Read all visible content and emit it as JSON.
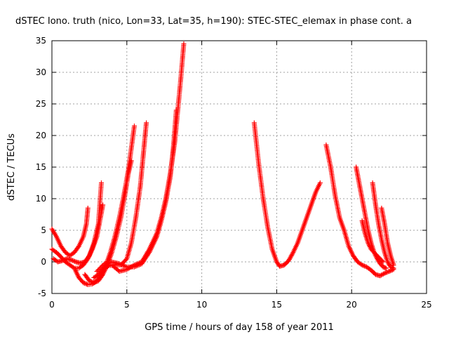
{
  "chart_data": {
    "type": "scatter",
    "title": "dSTEC Iono. truth (nico, Lon=33, Lat=35, h=190): STEC-STEC_elemax in phase cont. a",
    "xlabel": "GPS time / hours of day 158 of year 2011",
    "ylabel": "dSTEC  / TECUs",
    "xlim": [
      0,
      25
    ],
    "ylim": [
      -5,
      35
    ],
    "xticks": [
      "0",
      "5",
      "10",
      "15",
      "20",
      "25"
    ],
    "yticks": [
      "-5",
      "0",
      "5",
      "10",
      "15",
      "20",
      "25",
      "30",
      "35"
    ],
    "grid": true,
    "marker": "+",
    "color": "#ff0000",
    "series": [
      {
        "x": [
          0.0,
          0.3,
          0.6,
          0.9,
          1.2,
          1.5,
          1.8,
          2.1,
          2.3,
          2.4
        ],
        "y": [
          5.2,
          4.0,
          2.5,
          1.5,
          1.0,
          1.5,
          2.5,
          4.0,
          6.0,
          8.5
        ]
      },
      {
        "x": [
          0.1,
          0.4,
          0.7,
          1.0,
          1.3,
          1.6,
          1.9,
          2.2,
          2.5,
          2.8,
          3.1,
          3.3
        ],
        "y": [
          0.5,
          0.0,
          0.2,
          0.5,
          0.3,
          0.0,
          -0.2,
          0.0,
          1.0,
          3.0,
          6.0,
          12.5
        ]
      },
      {
        "x": [
          0.0,
          0.3,
          0.6,
          0.9,
          1.2,
          1.5,
          1.8,
          2.1,
          2.4,
          2.7,
          3.0,
          3.2,
          3.4
        ],
        "y": [
          2.0,
          1.5,
          0.8,
          0.0,
          -0.5,
          -1.0,
          -1.0,
          -0.5,
          0.5,
          2.0,
          4.0,
          6.5,
          9.0
        ]
      },
      {
        "x": [
          1.5,
          1.8,
          2.1,
          2.4,
          2.7,
          3.0,
          3.3,
          3.6,
          3.9,
          4.2,
          4.5,
          4.8,
          5.1,
          5.3,
          5.5
        ],
        "y": [
          -1.0,
          -2.5,
          -3.3,
          -3.6,
          -3.5,
          -3.0,
          -2.0,
          -0.5,
          1.5,
          4.0,
          7.0,
          10.5,
          14.5,
          18.0,
          21.5
        ]
      },
      {
        "x": [
          2.2,
          2.5,
          2.8,
          3.1,
          3.4,
          3.7,
          4.0,
          4.3,
          4.6,
          4.9,
          5.1,
          5.3
        ],
        "y": [
          -2.0,
          -3.0,
          -3.3,
          -3.0,
          -2.0,
          -0.5,
          1.5,
          4.0,
          7.0,
          11.0,
          14.0,
          16.0
        ]
      },
      {
        "x": [
          2.8,
          3.1,
          3.4,
          3.8,
          4.2,
          4.6,
          5.0,
          5.3,
          5.6,
          5.9,
          6.1,
          6.3
        ],
        "y": [
          -2.5,
          -2.0,
          -1.2,
          -0.6,
          -0.5,
          -0.5,
          0.5,
          3.0,
          7.0,
          12.0,
          17.0,
          22.0
        ]
      },
      {
        "x": [
          3.0,
          3.5,
          4.0,
          4.5,
          5.0,
          5.5,
          6.0,
          6.5,
          7.0,
          7.3,
          7.6,
          7.9,
          8.1,
          8.3
        ],
        "y": [
          -1.5,
          -0.3,
          0.0,
          -0.3,
          -0.8,
          -0.8,
          -0.3,
          1.5,
          4.0,
          6.5,
          9.5,
          13.5,
          18.0,
          24.0
        ]
      },
      {
        "x": [
          4.0,
          4.5,
          5.0,
          5.5,
          6.0,
          6.5,
          7.0,
          7.3,
          7.6,
          7.9,
          8.2,
          8.4,
          8.6,
          8.8
        ],
        "y": [
          -0.5,
          -1.5,
          -1.2,
          -0.5,
          0.0,
          2.0,
          4.5,
          7.0,
          10.0,
          14.0,
          19.0,
          24.0,
          29.0,
          34.5
        ]
      },
      {
        "x": [
          13.5,
          13.8,
          14.1,
          14.4,
          14.7,
          15.0,
          15.2,
          15.5,
          15.8,
          16.1,
          16.4,
          16.7,
          17.0,
          17.3,
          17.6,
          17.9
        ],
        "y": [
          22.0,
          15.5,
          10.0,
          5.5,
          2.0,
          0.0,
          -0.7,
          -0.5,
          0.2,
          1.5,
          3.0,
          5.0,
          7.0,
          9.0,
          11.0,
          12.5
        ]
      },
      {
        "x": [
          18.3,
          18.6,
          18.9,
          19.2,
          19.5,
          19.8,
          20.1,
          20.4,
          20.7,
          21.0,
          21.3,
          21.6,
          21.9,
          22.2,
          22.5,
          22.8
        ],
        "y": [
          18.5,
          15.0,
          10.5,
          7.0,
          5.0,
          2.5,
          1.0,
          0.0,
          -0.5,
          -0.8,
          -1.3,
          -2.0,
          -2.2,
          -1.8,
          -1.5,
          -1.2
        ]
      },
      {
        "x": [
          20.3,
          20.5,
          20.7,
          20.9,
          21.1,
          21.3,
          21.5,
          21.7,
          21.9,
          22.1,
          22.3
        ],
        "y": [
          15.0,
          12.5,
          10.0,
          7.5,
          5.0,
          3.0,
          1.5,
          0.5,
          -0.3,
          -0.8,
          -1.0
        ]
      },
      {
        "x": [
          21.4,
          21.6,
          21.8,
          22.0,
          22.2,
          22.4,
          22.6,
          22.8
        ],
        "y": [
          12.5,
          9.0,
          6.0,
          3.5,
          1.5,
          0.0,
          -0.8,
          -1.0
        ]
      },
      {
        "x": [
          20.7,
          20.9,
          21.1,
          21.3,
          21.5,
          21.7,
          21.9,
          22.1
        ],
        "y": [
          6.5,
          4.5,
          3.0,
          2.0,
          1.5,
          1.0,
          0.5,
          0.0
        ]
      },
      {
        "x": [
          22.0,
          22.2,
          22.4,
          22.6,
          22.8
        ],
        "y": [
          8.5,
          6.0,
          3.0,
          1.0,
          -0.5
        ]
      }
    ]
  }
}
